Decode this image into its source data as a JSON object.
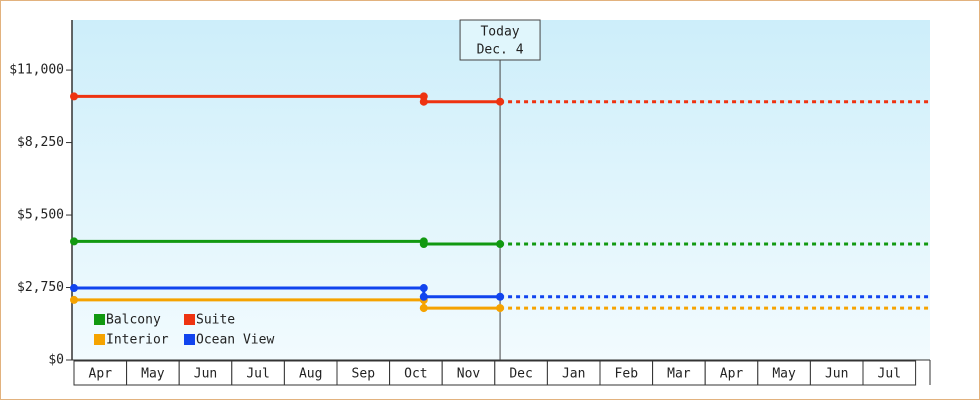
{
  "chart_data": {
    "type": "line",
    "categories": [
      "Apr",
      "May",
      "Jun",
      "Jul",
      "Aug",
      "Sep",
      "Oct",
      "Nov",
      "Dec",
      "Jan",
      "Feb",
      "Mar",
      "Apr",
      "May",
      "Jun",
      "Jul"
    ],
    "xlim": [
      0,
      16.27
    ],
    "ylim": [
      0,
      12900
    ],
    "yticks": [
      {
        "value": 0,
        "label": "$0"
      },
      {
        "value": 2750,
        "label": "$2,750"
      },
      {
        "value": 5500,
        "label": "$5,500"
      },
      {
        "value": 8250,
        "label": "$8,250"
      },
      {
        "value": 11000,
        "label": "$11,000"
      }
    ],
    "today": {
      "x": 8.1,
      "label": "Today",
      "date": "Dec. 4"
    },
    "legend": "lower left",
    "series": [
      {
        "name": "Balcony",
        "color": "#119911",
        "x": [
          0,
          6.65,
          6.65,
          8.1,
          16.27
        ],
        "values": [
          4500,
          4500,
          4400,
          4400,
          4400
        ]
      },
      {
        "name": "Suite",
        "color": "#ee3311",
        "x": [
          0,
          6.65,
          6.65,
          8.1,
          16.27
        ],
        "values": [
          10000,
          10000,
          9800,
          9800,
          9800
        ]
      },
      {
        "name": "Interior",
        "color": "#f5a300",
        "x": [
          0,
          6.65,
          6.65,
          8.1,
          16.27
        ],
        "values": [
          2280,
          2280,
          1970,
          1970,
          1970
        ]
      },
      {
        "name": "Ocean View",
        "color": "#1144ee",
        "x": [
          0,
          6.65,
          6.65,
          8.1,
          16.27
        ],
        "values": [
          2730,
          2730,
          2400,
          2400,
          2400
        ]
      }
    ]
  }
}
